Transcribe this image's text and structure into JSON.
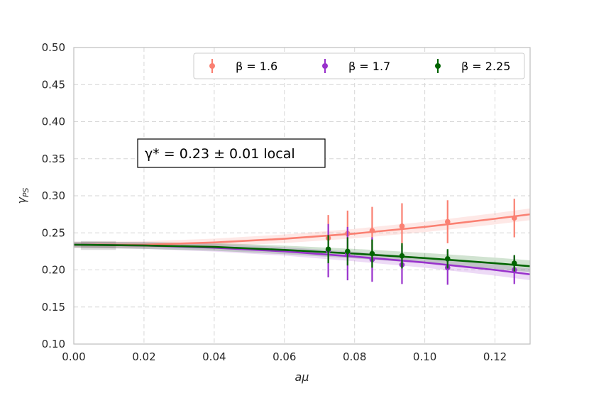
{
  "chart_data": {
    "type": "scatter",
    "xlabel": "aμ",
    "ylabel": "γ_PS",
    "xlim": [
      0.0,
      0.13
    ],
    "ylim": [
      0.1,
      0.5
    ],
    "x_ticks": [
      "0.00",
      "0.02",
      "0.04",
      "0.06",
      "0.08",
      "0.10",
      "0.12"
    ],
    "y_ticks": [
      "0.10",
      "0.15",
      "0.20",
      "0.25",
      "0.30",
      "0.35",
      "0.40",
      "0.45",
      "0.50"
    ],
    "grid": true,
    "legend_position": "top-right",
    "annotation": "γ* = 0.23 ± 0.01 local",
    "series": [
      {
        "name": "β = 1.6",
        "color": "#fa8072",
        "x": [
          0.0725,
          0.078,
          0.085,
          0.0935,
          0.1065,
          0.1255
        ],
        "y": [
          0.243,
          0.249,
          0.253,
          0.259,
          0.265,
          0.27
        ],
        "yerr": [
          0.031,
          0.031,
          0.032,
          0.031,
          0.029,
          0.026
        ],
        "fit": {
          "x": [
            0.0,
            0.02,
            0.04,
            0.06,
            0.08,
            0.1,
            0.12,
            0.13
          ],
          "y": [
            0.234,
            0.234,
            0.237,
            0.242,
            0.249,
            0.258,
            0.269,
            0.275
          ]
        }
      },
      {
        "name": "β = 1.7",
        "color": "#9932cc",
        "x": [
          0.0725,
          0.078,
          0.085,
          0.0935,
          0.1065,
          0.1255
        ],
        "y": [
          0.226,
          0.222,
          0.214,
          0.207,
          0.203,
          0.2
        ],
        "yerr": [
          0.036,
          0.036,
          0.03,
          0.026,
          0.023,
          0.019
        ],
        "fit": {
          "x": [
            0.0,
            0.02,
            0.04,
            0.06,
            0.08,
            0.1,
            0.12,
            0.13
          ],
          "y": [
            0.234,
            0.233,
            0.23,
            0.225,
            0.218,
            0.21,
            0.2,
            0.194
          ]
        }
      },
      {
        "name": "β = 2.25",
        "color": "#006400",
        "x": [
          0.0725,
          0.078,
          0.085,
          0.0935,
          0.1065,
          0.1255
        ],
        "y": [
          0.228,
          0.225,
          0.222,
          0.219,
          0.215,
          0.209
        ],
        "yerr": [
          0.019,
          0.019,
          0.019,
          0.017,
          0.013,
          0.011
        ],
        "fit": {
          "x": [
            0.0,
            0.02,
            0.04,
            0.06,
            0.08,
            0.1,
            0.12,
            0.13
          ],
          "y": [
            0.234,
            0.233,
            0.231,
            0.227,
            0.222,
            0.216,
            0.209,
            0.205
          ]
        }
      }
    ]
  }
}
